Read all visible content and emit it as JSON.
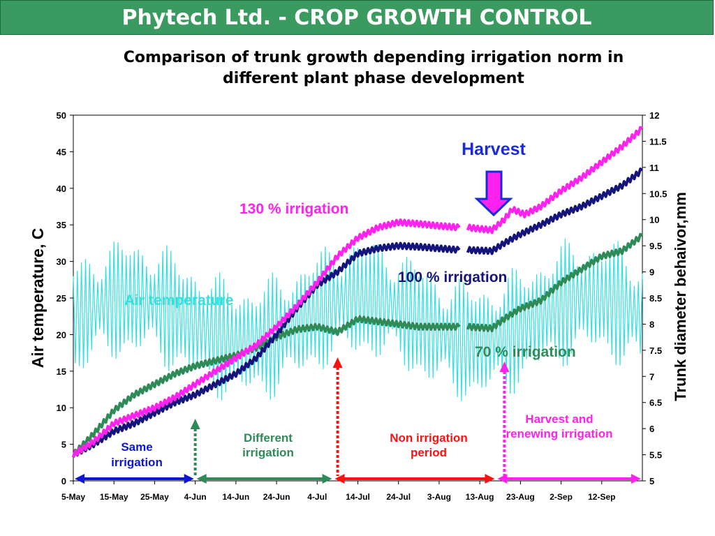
{
  "header": {
    "title": "Phytech Ltd. - CROP GROWTH CONTROL",
    "subtitle_line1": "Comparison of trunk growth depending irrigation norm in",
    "subtitle_line2": "different plant phase development"
  },
  "chart_data": {
    "type": "line",
    "ylabel_left": "Air temperature, C",
    "ylabel_right": "Trunk diameter behaivor,mm",
    "ylim_left": [
      0,
      50
    ],
    "ylim_right": [
      5,
      12
    ],
    "yticks_left": [
      "0",
      "5",
      "10",
      "15",
      "20",
      "25",
      "30",
      "35",
      "40",
      "45",
      "50"
    ],
    "yticks_right": [
      "5",
      "5.5",
      "6",
      "6.5",
      "7",
      "7.5",
      "8",
      "8.5",
      "9",
      "9.5",
      "10",
      "10.5",
      "11",
      "11.5",
      "12"
    ],
    "xticks": [
      "5-May",
      "15-May",
      "25-May",
      "4-Jun",
      "14-Jun",
      "24-Jun",
      "4-Jul",
      "14-Jul",
      "24-Jul",
      "3-Aug",
      "13-Aug",
      "23-Aug",
      "2-Sep",
      "12-Sep"
    ],
    "x_range_days": [
      0,
      140
    ],
    "grid": false,
    "series": [
      {
        "name": "130 % irrigation",
        "color": "#ff22ee",
        "axis": "right",
        "points": [
          [
            0,
            5.5
          ],
          [
            5,
            5.75
          ],
          [
            10,
            6.1
          ],
          [
            15,
            6.25
          ],
          [
            20,
            6.4
          ],
          [
            25,
            6.6
          ],
          [
            30,
            6.85
          ],
          [
            35,
            7.1
          ],
          [
            40,
            7.35
          ],
          [
            45,
            7.6
          ],
          [
            50,
            7.95
          ],
          [
            55,
            8.35
          ],
          [
            60,
            8.8
          ],
          [
            65,
            9.3
          ],
          [
            70,
            9.65
          ],
          [
            75,
            9.85
          ],
          [
            80,
            9.95
          ],
          [
            85,
            9.92
          ],
          [
            90,
            9.88
          ],
          [
            95,
            9.85
          ],
          [
            96,
            null
          ],
          [
            97,
            9.85
          ],
          [
            103,
            9.8
          ],
          [
            106,
            10.0
          ],
          [
            108,
            10.2
          ],
          [
            111,
            10.1
          ],
          [
            115,
            10.25
          ],
          [
            120,
            10.55
          ],
          [
            125,
            10.8
          ],
          [
            130,
            11.1
          ],
          [
            135,
            11.4
          ],
          [
            140,
            11.75
          ]
        ]
      },
      {
        "name": "100 % irrigation",
        "color": "#14147a",
        "axis": "right",
        "points": [
          [
            0,
            5.5
          ],
          [
            5,
            5.7
          ],
          [
            10,
            5.95
          ],
          [
            15,
            6.1
          ],
          [
            20,
            6.3
          ],
          [
            25,
            6.5
          ],
          [
            30,
            6.65
          ],
          [
            35,
            6.85
          ],
          [
            40,
            7.05
          ],
          [
            45,
            7.35
          ],
          [
            50,
            7.8
          ],
          [
            55,
            8.3
          ],
          [
            60,
            8.75
          ],
          [
            65,
            9.0
          ],
          [
            70,
            9.35
          ],
          [
            75,
            9.45
          ],
          [
            80,
            9.5
          ],
          [
            85,
            9.48
          ],
          [
            90,
            9.45
          ],
          [
            95,
            9.42
          ],
          [
            96,
            null
          ],
          [
            97,
            9.42
          ],
          [
            103,
            9.4
          ],
          [
            106,
            9.55
          ],
          [
            110,
            9.72
          ],
          [
            115,
            9.9
          ],
          [
            120,
            10.1
          ],
          [
            125,
            10.25
          ],
          [
            130,
            10.45
          ],
          [
            135,
            10.65
          ],
          [
            140,
            10.95
          ]
        ]
      },
      {
        "name": "70 % irrigation",
        "color": "#2e8b57",
        "axis": "right",
        "points": [
          [
            0,
            5.5
          ],
          [
            5,
            5.9
          ],
          [
            10,
            6.35
          ],
          [
            15,
            6.65
          ],
          [
            20,
            6.85
          ],
          [
            25,
            7.05
          ],
          [
            30,
            7.2
          ],
          [
            35,
            7.3
          ],
          [
            40,
            7.4
          ],
          [
            45,
            7.55
          ],
          [
            50,
            7.75
          ],
          [
            55,
            7.9
          ],
          [
            60,
            7.95
          ],
          [
            65,
            7.85
          ],
          [
            70,
            8.1
          ],
          [
            75,
            8.05
          ],
          [
            80,
            8.0
          ],
          [
            85,
            7.95
          ],
          [
            90,
            7.95
          ],
          [
            95,
            7.95
          ],
          [
            96,
            null
          ],
          [
            97,
            7.95
          ],
          [
            103,
            7.92
          ],
          [
            106,
            8.1
          ],
          [
            110,
            8.3
          ],
          [
            115,
            8.45
          ],
          [
            120,
            8.8
          ],
          [
            125,
            9.05
          ],
          [
            130,
            9.3
          ],
          [
            135,
            9.4
          ],
          [
            140,
            9.7
          ]
        ]
      },
      {
        "name": "Air temperature",
        "color": "#33e0e0",
        "axis": "left",
        "mean": 22,
        "amplitude": 8
      }
    ],
    "annotations": {
      "harvest": "Harvest",
      "air_temperature": "Air temperature",
      "phase_same": [
        "Same",
        "irrigation"
      ],
      "phase_different": [
        "Different",
        "irrigation"
      ],
      "phase_non": [
        "Non irrigation",
        "period"
      ],
      "phase_harvest": [
        "Harvest and",
        "renewing irrigation"
      ]
    },
    "phase_colors": {
      "same": "#0b17d4",
      "different": "#2e8b57",
      "non": "#ff1010",
      "harvest": "#ff22ee",
      "harvest_arrow": "#ff22ee",
      "harvest_text": "#1a2bd8"
    },
    "phase_boundaries_days": [
      0,
      30,
      64,
      104,
      140
    ]
  }
}
